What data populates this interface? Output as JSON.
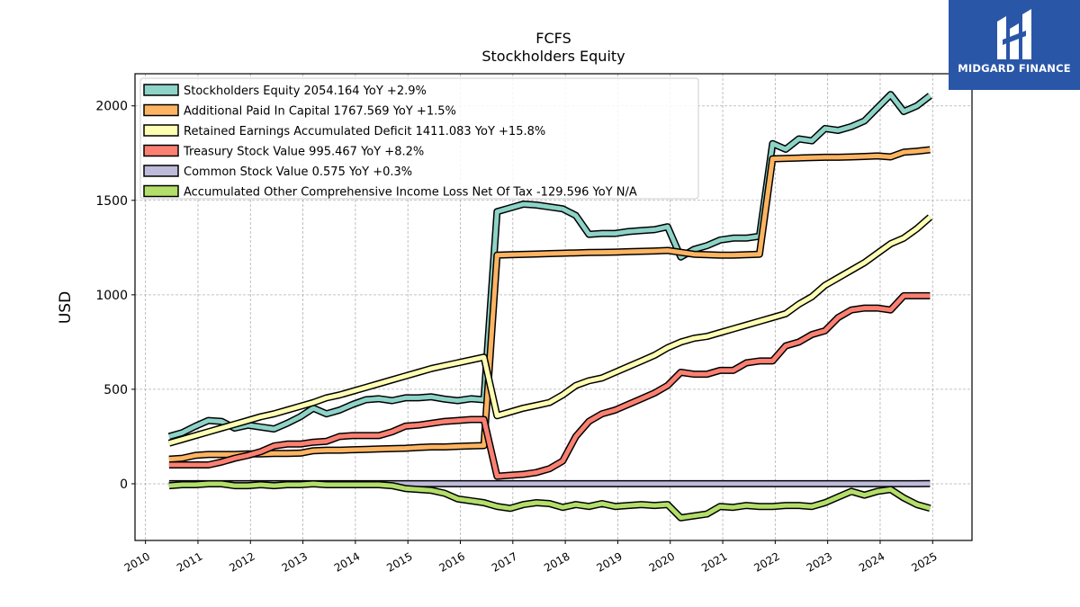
{
  "chart_data": {
    "type": "line",
    "title": "FCFS",
    "subtitle": "Stockholders  Equity",
    "xlabel": "",
    "ylabel": "USD",
    "xlim": [
      2009.8,
      2025.75
    ],
    "ylim": [
      -300,
      2170
    ],
    "x_ticks": [
      "2010",
      "2011",
      "2012",
      "2013",
      "2014",
      "2015",
      "2016",
      "2017",
      "2018",
      "2019",
      "2020",
      "2021",
      "2022",
      "2023",
      "2024",
      "2025"
    ],
    "y_ticks": [
      0,
      500,
      1000,
      1500,
      2000
    ],
    "grid": true,
    "legend_position": "top-left",
    "x": [
      2010.45,
      2010.7,
      2010.95,
      2011.2,
      2011.45,
      2011.7,
      2011.95,
      2012.2,
      2012.45,
      2012.7,
      2012.95,
      2013.2,
      2013.45,
      2013.7,
      2013.95,
      2014.2,
      2014.45,
      2014.7,
      2014.95,
      2015.2,
      2015.45,
      2015.7,
      2015.95,
      2016.2,
      2016.45,
      2016.7,
      2016.95,
      2017.2,
      2017.45,
      2017.7,
      2017.95,
      2018.2,
      2018.45,
      2018.7,
      2018.95,
      2019.2,
      2019.45,
      2019.7,
      2019.95,
      2020.2,
      2020.45,
      2020.7,
      2020.95,
      2021.2,
      2021.45,
      2021.7,
      2021.95,
      2022.2,
      2022.45,
      2022.7,
      2022.95,
      2023.2,
      2023.45,
      2023.7,
      2023.95,
      2024.2,
      2024.45,
      2024.7,
      2024.95
    ],
    "series": [
      {
        "name": "Stockholders Equity",
        "legend": "Stockholders Equity  2054.164 YoY +2.9%",
        "color": "#8dd3c7",
        "values": [
          250,
          270,
          305,
          335,
          330,
          295,
          310,
          300,
          290,
          320,
          355,
          400,
          370,
          390,
          420,
          445,
          450,
          440,
          455,
          455,
          460,
          448,
          440,
          450,
          445,
          1440,
          1460,
          1480,
          1475,
          1465,
          1455,
          1420,
          1320,
          1325,
          1325,
          1335,
          1340,
          1345,
          1360,
          1200,
          1240,
          1260,
          1290,
          1300,
          1300,
          1310,
          1800,
          1770,
          1825,
          1815,
          1880,
          1870,
          1890,
          1920,
          1990,
          2060,
          1970,
          2000,
          2054
        ]
      },
      {
        "name": "Additional Paid In Capital",
        "legend": "Additional Paid In Capital  1767.569 YoY +1.5%",
        "color": "#fdb462",
        "values": [
          130,
          135,
          150,
          155,
          155,
          155,
          158,
          158,
          160,
          160,
          162,
          175,
          178,
          178,
          180,
          182,
          184,
          186,
          188,
          192,
          195,
          195,
          198,
          200,
          202,
          1210,
          1212,
          1214,
          1216,
          1218,
          1220,
          1222,
          1224,
          1225,
          1226,
          1228,
          1230,
          1232,
          1235,
          1225,
          1215,
          1212,
          1210,
          1210,
          1212,
          1215,
          1720,
          1722,
          1724,
          1726,
          1728,
          1728,
          1730,
          1732,
          1735,
          1730,
          1755,
          1760,
          1768
        ]
      },
      {
        "name": "Retained Earnings Accumulated Deficit",
        "legend": "Retained Earnings Accumulated Deficit  1411.083 YoY +15.8%",
        "color": "#ffffb3",
        "values": [
          215,
          235,
          255,
          275,
          295,
          315,
          335,
          355,
          370,
          390,
          410,
          430,
          455,
          470,
          490,
          510,
          530,
          550,
          570,
          590,
          610,
          625,
          640,
          655,
          670,
          360,
          380,
          400,
          415,
          430,
          470,
          520,
          545,
          560,
          590,
          620,
          650,
          680,
          720,
          750,
          770,
          780,
          800,
          820,
          840,
          860,
          880,
          900,
          950,
          990,
          1050,
          1090,
          1130,
          1170,
          1220,
          1270,
          1300,
          1350,
          1411
        ]
      },
      {
        "name": "Treasury Stock Value",
        "legend": "Treasury Stock Value  995.467 YoY +8.2%",
        "color": "#fb8072",
        "values": [
          100,
          100,
          100,
          100,
          115,
          135,
          150,
          170,
          200,
          210,
          210,
          220,
          225,
          250,
          255,
          255,
          255,
          275,
          305,
          310,
          320,
          330,
          335,
          340,
          340,
          40,
          45,
          50,
          60,
          80,
          120,
          250,
          330,
          370,
          390,
          420,
          450,
          480,
          520,
          590,
          580,
          580,
          600,
          600,
          640,
          650,
          650,
          730,
          750,
          790,
          810,
          880,
          920,
          930,
          930,
          920,
          995,
          995,
          995
        ]
      },
      {
        "name": "Common Stock Value",
        "legend": "Common Stock Value  0.575 YoY +0.3%",
        "color": "#bebada",
        "values": [
          0.5,
          0.5,
          0.5,
          0.5,
          0.5,
          0.5,
          0.5,
          0.5,
          0.5,
          0.5,
          0.5,
          0.5,
          0.5,
          0.5,
          0.5,
          0.5,
          0.5,
          0.5,
          0.5,
          0.5,
          0.5,
          0.5,
          0.5,
          0.5,
          0.5,
          0.5,
          0.5,
          0.5,
          0.5,
          0.5,
          0.5,
          0.5,
          0.5,
          0.5,
          0.5,
          0.5,
          0.5,
          0.5,
          0.5,
          0.5,
          0.5,
          0.5,
          0.5,
          0.5,
          0.5,
          0.5,
          0.5,
          0.5,
          0.5,
          0.5,
          0.5,
          0.5,
          0.5,
          0.5,
          0.5,
          0.5,
          0.5,
          0.5,
          0.575
        ]
      },
      {
        "name": "Accumulated Other Comprehensive Income Loss Net Of Tax",
        "legend": "Accumulated Other Comprehensive Income Loss Net Of Tax  -129.596 YoY N/A",
        "color": "#b3de69",
        "values": [
          -10,
          -5,
          -5,
          0,
          0,
          -10,
          -10,
          -5,
          -10,
          -5,
          -5,
          0,
          -5,
          -5,
          -5,
          -5,
          -5,
          -10,
          -25,
          -30,
          -35,
          -50,
          -80,
          -90,
          -100,
          -120,
          -130,
          -110,
          -100,
          -105,
          -125,
          -110,
          -120,
          -105,
          -120,
          -115,
          -110,
          -115,
          -110,
          -180,
          -170,
          -160,
          -120,
          -125,
          -115,
          -120,
          -120,
          -115,
          -115,
          -120,
          -100,
          -70,
          -40,
          -60,
          -40,
          -30,
          -75,
          -110,
          -129.6
        ]
      }
    ]
  },
  "brand": {
    "name": "MIDGARD FINANCE",
    "color": "#2a56a8"
  }
}
